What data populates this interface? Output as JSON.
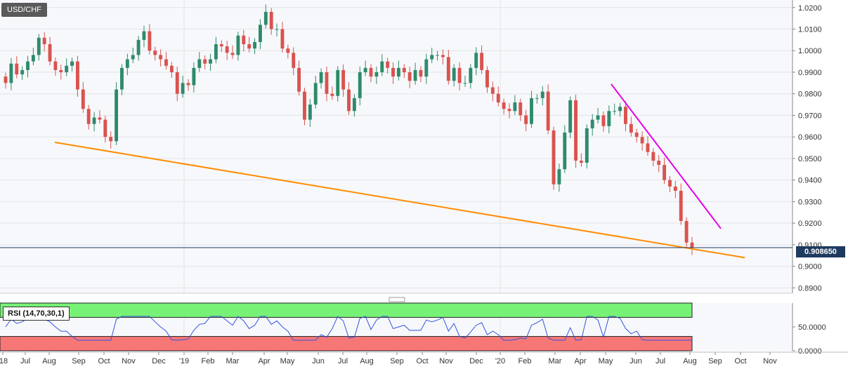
{
  "header": {
    "symbol": "USD/CHF"
  },
  "current_price_label": "0.908650",
  "rsi_panel": {
    "label": "RSI (14,70,30,1)",
    "tick_labels": [
      "50.0000",
      "0.0000"
    ]
  },
  "colors": {
    "bull": "#2e8b6b",
    "bear": "#d9534f",
    "support_line": "#ff8c00",
    "resistance_line": "#e600e6",
    "rsi_line": "#3355dd",
    "rsi_overbought_zone": "#77f277",
    "rsi_oversold_zone": "#f77777",
    "current_price_badge": "#1f3a5f"
  },
  "chart_data": [
    {
      "type": "candlestick",
      "title": "USD/CHF",
      "timeframe": "weekly",
      "ylim": [
        0.8875,
        1.0235
      ],
      "y_ticks": [
        "0.8900",
        "0.9000",
        "0.9100",
        "0.9200",
        "0.9300",
        "0.9400",
        "0.9500",
        "0.9600",
        "0.9700",
        "0.9800",
        "0.9900",
        "1.0000",
        "1.0100",
        "1.0200"
      ],
      "x_ticks": [
        "'18",
        "Jul",
        "Aug",
        "Sep",
        "Oct",
        "Nov",
        "Dec",
        "'19",
        "Feb",
        "Mar",
        "Apr",
        "May",
        "Jun",
        "Jul",
        "Aug",
        "Sep",
        "Oct",
        "Nov",
        "Dec",
        "'20",
        "Feb",
        "Mar",
        "Apr",
        "May",
        "Jun",
        "Jul",
        "Aug",
        "Sep",
        "Oct",
        "Nov"
      ],
      "grid": true,
      "current_price": 0.90865,
      "weekly_closes": [
        0.985,
        0.994,
        0.989,
        0.991,
        0.995,
        0.998,
        1.006,
        1.003,
        0.995,
        0.991,
        0.99,
        0.993,
        0.995,
        0.982,
        0.973,
        0.966,
        0.969,
        0.968,
        0.96,
        0.958,
        0.982,
        0.992,
        0.996,
        0.998,
        1.005,
        1.009,
        1.0,
        0.998,
        0.996,
        0.993,
        0.99,
        0.98,
        0.985,
        0.984,
        0.992,
        0.996,
        0.994,
        0.996,
        1.003,
        1.002,
        0.999,
        0.998,
        1.007,
        1.003,
        1.001,
        1.004,
        1.012,
        1.018,
        1.01,
        1.01,
        1.001,
        0.999,
        0.992,
        0.981,
        0.968,
        0.975,
        0.985,
        0.99,
        0.98,
        0.979,
        0.991,
        0.982,
        0.972,
        0.978,
        0.99,
        0.992,
        0.988,
        0.99,
        0.995,
        0.992,
        0.988,
        0.992,
        0.99,
        0.986,
        0.991,
        0.988,
        0.996,
        0.998,
        0.998,
        0.997,
        0.986,
        0.992,
        0.985,
        0.985,
        0.992,
        0.999,
        0.991,
        0.983,
        0.98,
        0.976,
        0.973,
        0.972,
        0.976,
        0.97,
        0.966,
        0.978,
        0.978,
        0.981,
        0.963,
        0.938,
        0.945,
        0.962,
        0.977,
        0.949,
        0.948,
        0.964,
        0.968,
        0.97,
        0.965,
        0.972,
        0.972,
        0.974,
        0.966,
        0.962,
        0.96,
        0.957,
        0.953,
        0.949,
        0.947,
        0.94,
        0.937,
        0.935,
        0.921,
        0.911,
        0.90865
      ],
      "annotations": [
        "descending support line (orange)",
        "descending resistance line (magenta)"
      ]
    },
    {
      "type": "line",
      "title": "RSI (14,70,30,1)",
      "ylim": [
        0,
        100
      ],
      "y_ticks": [
        "50.0000",
        "0.0000"
      ],
      "zones": [
        {
          "name": "overbought",
          "from": 70,
          "to": 100
        },
        {
          "name": "oversold",
          "from": 0,
          "to": 30
        }
      ]
    }
  ]
}
